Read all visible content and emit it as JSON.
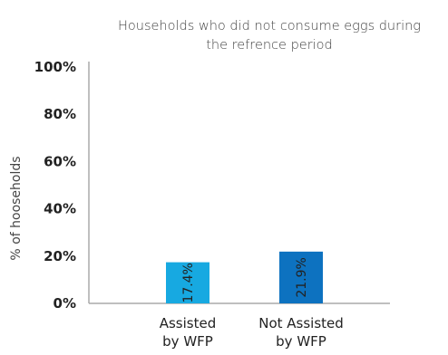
{
  "chart_data": {
    "type": "bar",
    "title_lines": [
      "Households who did not consume eggs during",
      "the refrence period"
    ],
    "ylabel": "% of hooseholds",
    "xlabel": "",
    "ylim": [
      0,
      100
    ],
    "yticks": [
      "0%",
      "20%",
      "40%",
      "60%",
      "80%",
      "100%"
    ],
    "grid": false,
    "categories": [
      {
        "lines": [
          "Assisted",
          "by WFP"
        ]
      },
      {
        "lines": [
          "Not Assisted",
          "by WFP"
        ]
      }
    ],
    "values": [
      17.4,
      21.9
    ],
    "data_labels": [
      "17.4%",
      "21.9%"
    ],
    "colors": [
      "#17a9e1",
      "#0d72c0"
    ],
    "axis_color": "#aaaaaa"
  }
}
